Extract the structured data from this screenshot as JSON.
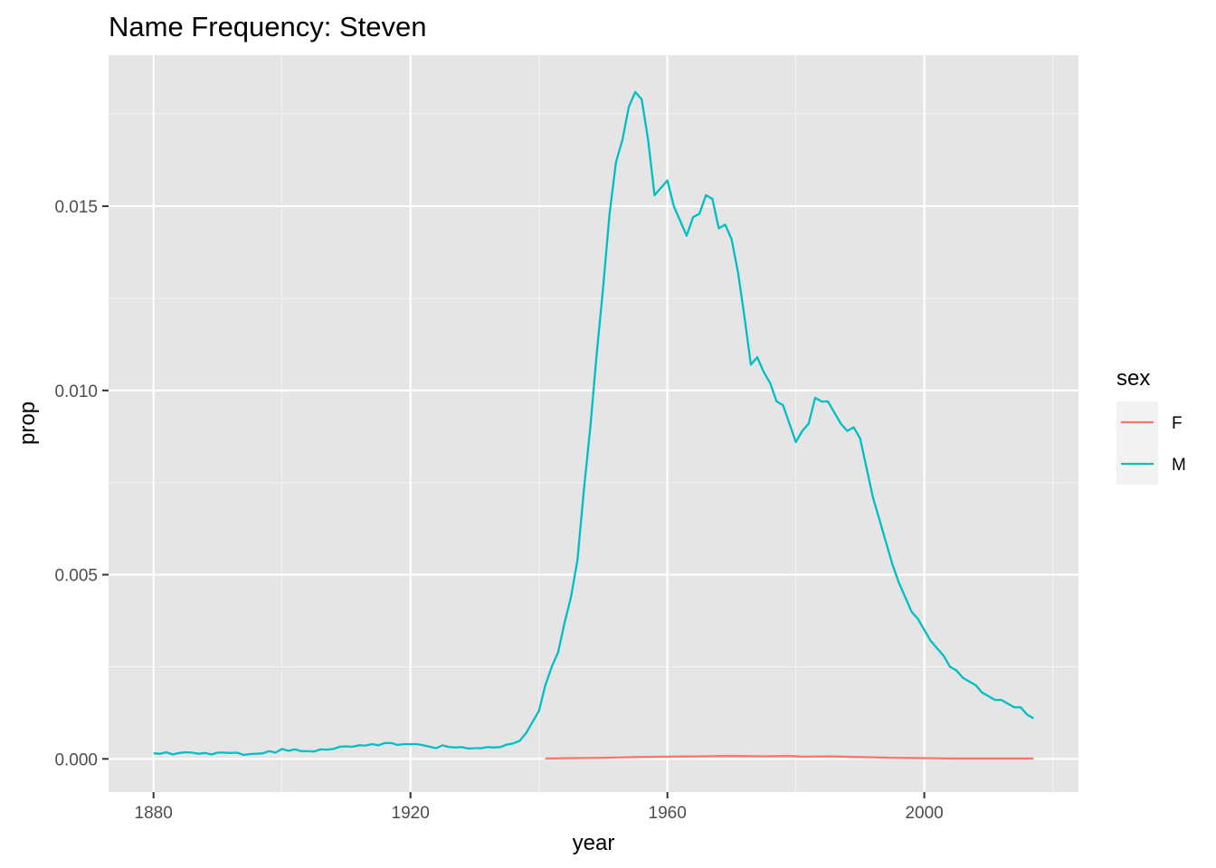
{
  "chart_data": {
    "type": "line",
    "title": "Name Frequency: Steven",
    "xlabel": "year",
    "ylabel": "prop",
    "xlim": [
      1873,
      2024
    ],
    "ylim": [
      -0.0009,
      0.0191
    ],
    "x_ticks": [
      {
        "value": 1880,
        "label": "1880"
      },
      {
        "value": 1920,
        "label": "1920"
      },
      {
        "value": 1960,
        "label": "1960"
      },
      {
        "value": 2000,
        "label": "2000"
      }
    ],
    "x_minor_ticks": [
      1900,
      1940,
      1980,
      2020
    ],
    "y_ticks": [
      {
        "value": 0.0,
        "label": "0.000"
      },
      {
        "value": 0.005,
        "label": "0.005"
      },
      {
        "value": 0.01,
        "label": "0.010"
      },
      {
        "value": 0.015,
        "label": "0.015"
      }
    ],
    "y_minor_ticks": [
      0.0025,
      0.0075,
      0.0125,
      0.0175
    ],
    "grid": true,
    "panel_background": "#e5e5e5",
    "legend": {
      "title": "sex",
      "placement": "right",
      "entries": [
        {
          "label": "F",
          "color": "#f8766d"
        },
        {
          "label": "M",
          "color": "#00bfc4"
        }
      ]
    },
    "series": [
      {
        "name": "F",
        "color": "#f8766d",
        "x": [
          1941,
          1945,
          1950,
          1955,
          1960,
          1965,
          1970,
          1975,
          1979,
          1981,
          1985,
          1990,
          1995,
          2000,
          2005,
          2010,
          2017
        ],
        "y": [
          1e-05,
          2e-05,
          3e-05,
          5e-05,
          6e-05,
          7e-05,
          8e-05,
          7e-05,
          8e-05,
          6e-05,
          7e-05,
          5e-05,
          3e-05,
          2e-05,
          1e-05,
          1e-05,
          1e-05
        ]
      },
      {
        "name": "M",
        "color": "#00bfc4",
        "x": [
          1880,
          1881,
          1882,
          1883,
          1884,
          1885,
          1886,
          1887,
          1888,
          1889,
          1890,
          1891,
          1892,
          1893,
          1894,
          1895,
          1896,
          1897,
          1898,
          1899,
          1900,
          1901,
          1902,
          1903,
          1904,
          1905,
          1906,
          1907,
          1908,
          1909,
          1910,
          1911,
          1912,
          1913,
          1914,
          1915,
          1916,
          1917,
          1918,
          1919,
          1920,
          1921,
          1922,
          1923,
          1924,
          1925,
          1926,
          1927,
          1928,
          1929,
          1930,
          1931,
          1932,
          1933,
          1934,
          1935,
          1936,
          1937,
          1938,
          1939,
          1940,
          1941,
          1942,
          1943,
          1944,
          1945,
          1946,
          1947,
          1948,
          1949,
          1950,
          1951,
          1952,
          1953,
          1954,
          1955,
          1956,
          1957,
          1958,
          1959,
          1960,
          1961,
          1962,
          1963,
          1964,
          1965,
          1966,
          1967,
          1968,
          1969,
          1970,
          1971,
          1972,
          1973,
          1974,
          1975,
          1976,
          1977,
          1978,
          1979,
          1980,
          1981,
          1982,
          1983,
          1984,
          1985,
          1986,
          1987,
          1988,
          1989,
          1990,
          1991,
          1992,
          1993,
          1994,
          1995,
          1996,
          1997,
          1998,
          1999,
          2000,
          2001,
          2002,
          2003,
          2004,
          2005,
          2006,
          2007,
          2008,
          2009,
          2010,
          2011,
          2012,
          2013,
          2014,
          2015,
          2016,
          2017
        ],
        "y": [
          0.00015,
          0.00014,
          0.00018,
          0.00012,
          0.00016,
          0.00018,
          0.00017,
          0.00014,
          0.00016,
          0.00012,
          0.00017,
          0.00017,
          0.00016,
          0.00017,
          0.00011,
          0.00013,
          0.00014,
          0.00015,
          0.00021,
          0.00017,
          0.00027,
          0.00022,
          0.00026,
          0.00021,
          0.00021,
          0.0002,
          0.00026,
          0.00025,
          0.00027,
          0.00033,
          0.00034,
          0.00033,
          0.00037,
          0.00036,
          0.0004,
          0.00037,
          0.00043,
          0.00043,
          0.00038,
          0.0004,
          0.0004,
          0.0004,
          0.00037,
          0.00033,
          0.00029,
          0.00037,
          0.00032,
          0.00031,
          0.00032,
          0.00028,
          0.00029,
          0.00029,
          0.00032,
          0.00031,
          0.00032,
          0.00039,
          0.00042,
          0.00049,
          0.0007,
          0.001,
          0.0013,
          0.002,
          0.0025,
          0.0029,
          0.0037,
          0.0044,
          0.0054,
          0.0073,
          0.009,
          0.011,
          0.0128,
          0.0148,
          0.0162,
          0.0168,
          0.0177,
          0.0181,
          0.0179,
          0.0168,
          0.0153,
          0.0155,
          0.0157,
          0.015,
          0.0146,
          0.0142,
          0.0147,
          0.0148,
          0.0153,
          0.0152,
          0.0144,
          0.0145,
          0.0141,
          0.0132,
          0.012,
          0.0107,
          0.0109,
          0.0105,
          0.0102,
          0.0097,
          0.0096,
          0.0091,
          0.0086,
          0.0089,
          0.0091,
          0.0098,
          0.0097,
          0.0097,
          0.0094,
          0.0091,
          0.0089,
          0.009,
          0.0087,
          0.0079,
          0.0071,
          0.0065,
          0.0059,
          0.0053,
          0.0048,
          0.0044,
          0.004,
          0.0038,
          0.0035,
          0.0032,
          0.003,
          0.0028,
          0.0025,
          0.0024,
          0.0022,
          0.0021,
          0.002,
          0.0018,
          0.0017,
          0.0016,
          0.0016,
          0.0015,
          0.0014,
          0.0014,
          0.0012,
          0.0011
        ]
      }
    ]
  }
}
